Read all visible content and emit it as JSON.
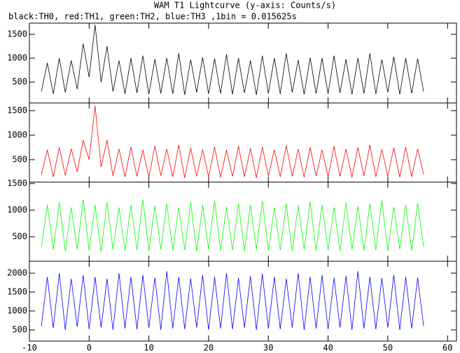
{
  "title": "WAM T1 Lightcurve (y-axis: Counts/s)",
  "subtitle": "black:TH0, red:TH1, green:TH2, blue:TH3 ,1bin = 0.015625s",
  "chart_data": [
    {
      "type": "line",
      "color": "#000000",
      "xlim": [
        -10,
        61.5
      ],
      "ylim": [
        60,
        1735
      ],
      "yticks": [
        500,
        1000,
        1500
      ],
      "x": [
        -8,
        -7,
        -6,
        -5,
        -4,
        -3,
        -2,
        -1,
        0,
        1,
        2,
        3,
        4,
        5,
        6,
        7,
        8,
        9,
        10,
        11,
        12,
        13,
        14,
        15,
        16,
        17,
        18,
        19,
        20,
        21,
        22,
        23,
        24,
        25,
        26,
        27,
        28,
        29,
        30,
        31,
        32,
        33,
        34,
        35,
        36,
        37,
        38,
        39,
        40,
        41,
        42,
        43,
        44,
        45,
        46,
        47,
        48,
        49,
        50,
        51,
        52,
        53,
        54,
        55,
        56
      ],
      "values": [
        300,
        900,
        250,
        1000,
        280,
        950,
        350,
        1300,
        600,
        1700,
        500,
        1250,
        300,
        950,
        250,
        1000,
        270,
        1050,
        240,
        980,
        260,
        1000,
        250,
        1100,
        230,
        970,
        280,
        1020,
        250,
        990,
        260,
        1080,
        240,
        1000,
        270,
        950,
        230,
        1050,
        260,
        1000,
        250,
        1100,
        280,
        960,
        240,
        1010,
        260,
        1000,
        250,
        1050,
        270,
        980,
        240,
        1000,
        260,
        1100,
        250,
        970,
        280,
        1030,
        240,
        1000,
        260,
        990,
        300
      ]
    },
    {
      "type": "line",
      "color": "#ff0000",
      "xlim": [
        -10,
        61.5
      ],
      "ylim": [
        43,
        1657
      ],
      "yticks": [
        500,
        1000,
        1500
      ],
      "x": [
        -8,
        -7,
        -6,
        -5,
        -4,
        -3,
        -2,
        -1,
        0,
        1,
        2,
        3,
        4,
        5,
        6,
        7,
        8,
        9,
        10,
        11,
        12,
        13,
        14,
        15,
        16,
        17,
        18,
        19,
        20,
        21,
        22,
        23,
        24,
        25,
        26,
        27,
        28,
        29,
        30,
        31,
        32,
        33,
        34,
        35,
        36,
        37,
        38,
        39,
        40,
        41,
        42,
        43,
        44,
        45,
        46,
        47,
        48,
        49,
        50,
        51,
        52,
        53,
        54,
        55,
        56
      ],
      "values": [
        200,
        700,
        150,
        750,
        180,
        720,
        250,
        900,
        500,
        1600,
        350,
        900,
        170,
        720,
        150,
        760,
        160,
        700,
        140,
        780,
        170,
        720,
        150,
        800,
        130,
        740,
        160,
        710,
        150,
        760,
        140,
        700,
        160,
        780,
        150,
        730,
        130,
        760,
        170,
        700,
        150,
        790,
        160,
        720,
        140,
        750,
        170,
        700,
        150,
        770,
        160,
        720,
        140,
        750,
        170,
        800,
        150,
        710,
        160,
        740,
        140,
        760,
        150,
        720,
        200
      ]
    },
    {
      "type": "line",
      "color": "#00ff00",
      "xlim": [
        -10,
        61.5
      ],
      "ylim": [
        40,
        1526
      ],
      "yticks": [
        500,
        1000,
        1500
      ],
      "x": [
        -8,
        -7,
        -6,
        -5,
        -4,
        -3,
        -2,
        -1,
        0,
        1,
        2,
        3,
        4,
        5,
        6,
        7,
        8,
        9,
        10,
        11,
        12,
        13,
        14,
        15,
        16,
        17,
        18,
        19,
        20,
        21,
        22,
        23,
        24,
        25,
        26,
        27,
        28,
        29,
        30,
        31,
        32,
        33,
        34,
        35,
        36,
        37,
        38,
        39,
        40,
        41,
        42,
        43,
        44,
        45,
        46,
        47,
        48,
        49,
        50,
        51,
        52,
        53,
        54,
        55,
        56
      ],
      "values": [
        300,
        1100,
        250,
        1150,
        230,
        1050,
        260,
        1200,
        240,
        1100,
        220,
        1150,
        260,
        1050,
        240,
        1100,
        250,
        1200,
        230,
        1080,
        260,
        1120,
        240,
        1050,
        250,
        1150,
        230,
        1100,
        260,
        1180,
        240,
        1060,
        250,
        1130,
        230,
        1100,
        260,
        1170,
        240,
        1050,
        250,
        1120,
        230,
        1090,
        260,
        1160,
        240,
        1100,
        250,
        1050,
        230,
        1140,
        260,
        1080,
        240,
        1120,
        250,
        1190,
        230,
        1060,
        260,
        1100,
        240,
        1130,
        300
      ]
    },
    {
      "type": "line",
      "color": "#0000ff",
      "xlim": [
        -10,
        61.5
      ],
      "ylim": [
        204,
        2315
      ],
      "yticks": [
        500,
        1000,
        1500,
        2000
      ],
      "xticks": [
        -10,
        0,
        10,
        20,
        30,
        40,
        50,
        60
      ],
      "x": [
        -8,
        -7,
        -6,
        -5,
        -4,
        -3,
        -2,
        -1,
        0,
        1,
        2,
        3,
        4,
        5,
        6,
        7,
        8,
        9,
        10,
        11,
        12,
        13,
        14,
        15,
        16,
        17,
        18,
        19,
        20,
        21,
        22,
        23,
        24,
        25,
        26,
        27,
        28,
        29,
        30,
        31,
        32,
        33,
        34,
        35,
        36,
        37,
        38,
        39,
        40,
        41,
        42,
        43,
        44,
        45,
        46,
        47,
        48,
        49,
        50,
        51,
        52,
        53,
        54,
        55,
        56
      ],
      "values": [
        600,
        1900,
        550,
        2000,
        500,
        1850,
        580,
        1950,
        520,
        1900,
        560,
        1850,
        500,
        2000,
        540,
        1900,
        520,
        1950,
        560,
        1880,
        500,
        2050,
        540,
        1900,
        520,
        1860,
        560,
        1950,
        500,
        1900,
        540,
        2000,
        520,
        1870,
        560,
        1920,
        500,
        1980,
        540,
        1900,
        520,
        1850,
        560,
        2000,
        500,
        1900,
        540,
        1950,
        520,
        1880,
        560,
        1920,
        500,
        2050,
        540,
        1900,
        520,
        1870,
        560,
        1950,
        500,
        1900,
        540,
        1880,
        600
      ]
    }
  ]
}
